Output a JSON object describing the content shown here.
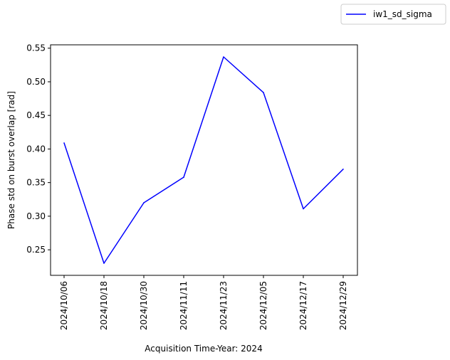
{
  "chart_data": {
    "type": "line",
    "x": [
      "2024/10/06",
      "2024/10/18",
      "2024/10/30",
      "2024/11/11",
      "2024/11/23",
      "2024/12/05",
      "2024/12/17",
      "2024/12/29"
    ],
    "series": [
      {
        "name": "iw1_sd_sigma",
        "color": "#0000ff",
        "values": [
          0.409,
          0.23,
          0.32,
          0.358,
          0.537,
          0.484,
          0.311,
          0.37
        ]
      }
    ],
    "xlabel": "Acquisition Time-Year: 2024",
    "ylabel": "Phase std on burst overlap [rad]",
    "ylim": [
      0.212,
      0.555
    ],
    "yticks": [
      "0.25",
      "0.30",
      "0.35",
      "0.40",
      "0.45",
      "0.50",
      "0.55"
    ],
    "grid": false,
    "legend_position": "top-right, outside plot"
  }
}
